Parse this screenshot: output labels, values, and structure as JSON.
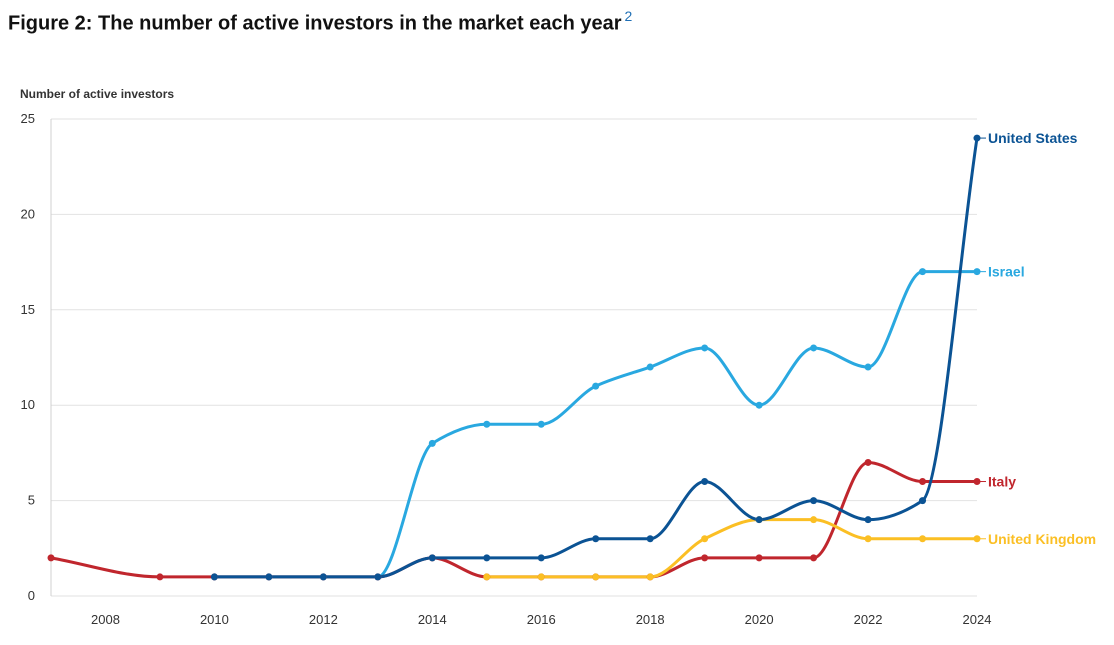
{
  "figure": {
    "title": "Figure 2: The number of active investors in the market each year",
    "footnote": "2"
  },
  "chart_data": {
    "type": "line",
    "title": "Figure 2: The number of active investors in the market each year",
    "ylabel": "Number of active investors",
    "xlabel": "",
    "xlim": [
      2007,
      2024
    ],
    "ylim": [
      0,
      25
    ],
    "x_ticks": [
      "2008",
      "2010",
      "2012",
      "2014",
      "2016",
      "2018",
      "2020",
      "2022",
      "2024"
    ],
    "y_ticks": [
      "0",
      "5",
      "10",
      "15",
      "20",
      "25"
    ],
    "grid": "horizontal",
    "legend": "end-of-line labels",
    "series": [
      {
        "name": "United States",
        "color": "#0b5394",
        "points": [
          [
            2010,
            1
          ],
          [
            2011,
            1
          ],
          [
            2012,
            1
          ],
          [
            2013,
            1
          ],
          [
            2014,
            2
          ],
          [
            2015,
            2
          ],
          [
            2016,
            2
          ],
          [
            2017,
            3
          ],
          [
            2018,
            3
          ],
          [
            2019,
            6
          ],
          [
            2020,
            4
          ],
          [
            2021,
            5
          ],
          [
            2022,
            4
          ],
          [
            2023,
            5
          ],
          [
            2024,
            24
          ]
        ]
      },
      {
        "name": "Israel",
        "color": "#29a8e0",
        "points": [
          [
            2010,
            1
          ],
          [
            2011,
            1
          ],
          [
            2012,
            1
          ],
          [
            2013,
            1
          ],
          [
            2014,
            8
          ],
          [
            2015,
            9
          ],
          [
            2016,
            9
          ],
          [
            2017,
            11
          ],
          [
            2018,
            12
          ],
          [
            2019,
            13
          ],
          [
            2020,
            10
          ],
          [
            2021,
            13
          ],
          [
            2022,
            12
          ],
          [
            2023,
            17
          ],
          [
            2024,
            17
          ]
        ]
      },
      {
        "name": "Italy",
        "color": "#c0262d",
        "points": [
          [
            2007,
            2
          ],
          [
            2009,
            1
          ],
          [
            2010,
            1
          ],
          [
            2011,
            1
          ],
          [
            2012,
            1
          ],
          [
            2013,
            1
          ],
          [
            2014,
            2
          ],
          [
            2015,
            1
          ],
          [
            2016,
            1
          ],
          [
            2017,
            1
          ],
          [
            2018,
            1
          ],
          [
            2019,
            2
          ],
          [
            2020,
            2
          ],
          [
            2021,
            2
          ],
          [
            2022,
            7
          ],
          [
            2023,
            6
          ],
          [
            2024,
            6
          ]
        ]
      },
      {
        "name": "United Kingdom",
        "color": "#fbbf24",
        "points": [
          [
            2015,
            1
          ],
          [
            2016,
            1
          ],
          [
            2017,
            1
          ],
          [
            2018,
            1
          ],
          [
            2019,
            3
          ],
          [
            2020,
            4
          ],
          [
            2021,
            4
          ],
          [
            2022,
            3
          ],
          [
            2023,
            3
          ],
          [
            2024,
            3
          ]
        ]
      }
    ]
  }
}
